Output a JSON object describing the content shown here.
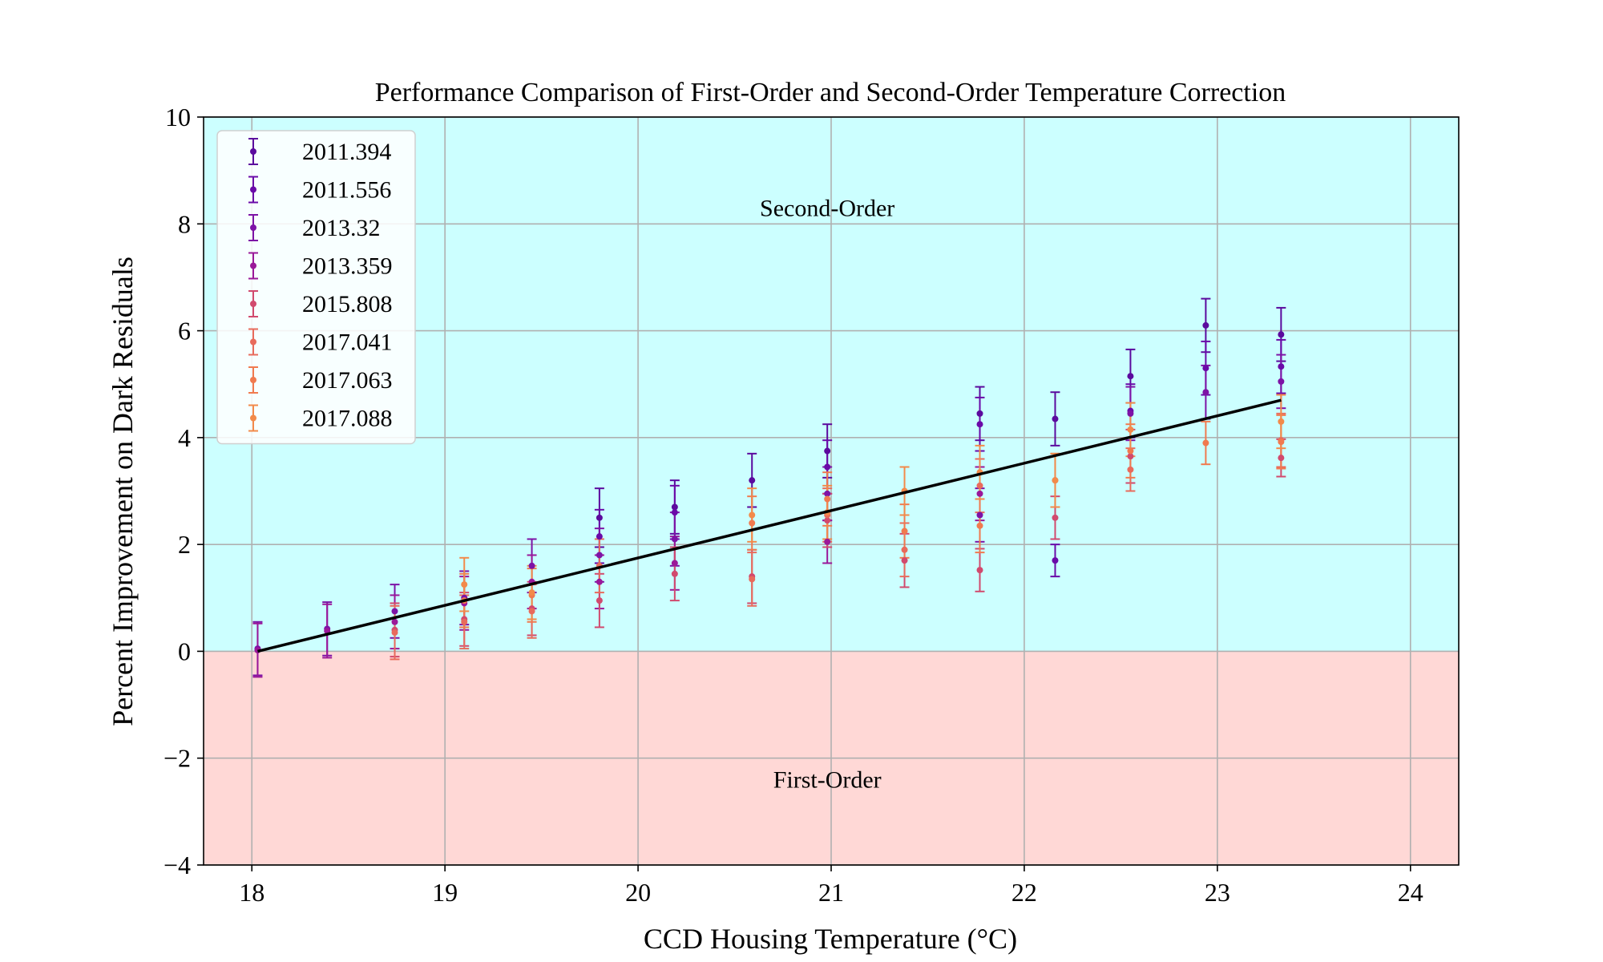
{
  "chart_data": {
    "type": "scatter",
    "title": "Performance Comparison of First-Order and Second-Order Temperature Correction",
    "xlabel": "CCD Housing Temperature (°C)",
    "ylabel": "Percent Improvement on Dark Residuals",
    "xlim": [
      17.75,
      24.25
    ],
    "ylim": [
      -4,
      10
    ],
    "xticks": [
      18,
      19,
      20,
      21,
      22,
      23,
      24
    ],
    "yticks": [
      -4,
      -2,
      0,
      2,
      4,
      6,
      8,
      10
    ],
    "ytick_labels": [
      "−4",
      "−2",
      "0",
      "2",
      "4",
      "6",
      "8",
      "10"
    ],
    "grid": true,
    "legend_position": "top-left",
    "regions": [
      {
        "label": "Second-Order",
        "y_range": [
          0,
          10
        ],
        "color": "#ccffff",
        "label_x": 20.98,
        "label_y": 8.3
      },
      {
        "label": "First-Order",
        "y_range": [
          -4,
          0
        ],
        "color": "#ffd8d6",
        "label_x": 20.98,
        "label_y": -2.4
      }
    ],
    "fit_line": {
      "x": [
        18.03,
        23.33
      ],
      "y": [
        0.0,
        4.7
      ],
      "color": "#000000"
    },
    "series": [
      {
        "name": "2011.394",
        "color": "#5b0a9e",
        "points": [
          [
            19.8,
            2.5,
            0.55
          ],
          [
            20.19,
            2.7,
            0.5
          ],
          [
            20.59,
            3.2,
            0.5
          ],
          [
            20.98,
            3.75,
            0.5
          ],
          [
            21.77,
            4.45,
            0.5
          ],
          [
            22.16,
            4.35,
            0.5
          ],
          [
            22.55,
            5.15,
            0.5
          ],
          [
            22.94,
            6.1,
            0.5
          ],
          [
            23.33,
            5.93,
            0.5
          ]
        ]
      },
      {
        "name": "2011.556",
        "color": "#6a0aa8",
        "points": [
          [
            19.8,
            2.15,
            0.5
          ],
          [
            20.19,
            2.6,
            0.5
          ],
          [
            20.98,
            3.45,
            0.5
          ],
          [
            21.77,
            4.25,
            0.5
          ],
          [
            22.16,
            1.7,
            0.3
          ],
          [
            22.55,
            4.5,
            0.5
          ],
          [
            22.94,
            5.3,
            0.5
          ],
          [
            23.33,
            5.33,
            0.5
          ]
        ]
      },
      {
        "name": "2013.32",
        "color": "#7d13a6",
        "points": [
          [
            18.03,
            0.05,
            0.5
          ],
          [
            18.39,
            0.42,
            0.5
          ],
          [
            18.74,
            0.75,
            0.5
          ],
          [
            19.1,
            1.0,
            0.5
          ],
          [
            19.45,
            1.6,
            0.5
          ],
          [
            19.8,
            1.8,
            0.5
          ],
          [
            20.19,
            2.1,
            0.5
          ],
          [
            20.98,
            2.95,
            0.5
          ],
          [
            21.77,
            2.55,
            0.5
          ],
          [
            22.55,
            4.45,
            0.5
          ],
          [
            22.94,
            4.85,
            0.5
          ],
          [
            23.33,
            5.05,
            0.5
          ]
        ]
      },
      {
        "name": "2013.359",
        "color": "#9a1899",
        "points": [
          [
            18.03,
            0.02,
            0.5
          ],
          [
            18.39,
            0.38,
            0.5
          ],
          [
            18.74,
            0.55,
            0.5
          ],
          [
            19.1,
            0.9,
            0.5
          ],
          [
            19.45,
            1.3,
            0.5
          ],
          [
            19.8,
            1.3,
            0.5
          ],
          [
            20.19,
            1.65,
            0.5
          ],
          [
            20.98,
            2.05,
            0.4
          ],
          [
            21.77,
            2.95,
            0.5
          ]
        ]
      },
      {
        "name": "2015.808",
        "color": "#d14a6e",
        "points": [
          [
            18.74,
            0.4,
            0.5
          ],
          [
            19.1,
            0.6,
            0.5
          ],
          [
            19.45,
            0.8,
            0.5
          ],
          [
            19.8,
            0.95,
            0.5
          ],
          [
            20.19,
            1.45,
            0.5
          ],
          [
            20.59,
            1.4,
            0.5
          ],
          [
            20.98,
            2.45,
            0.5
          ],
          [
            21.38,
            1.7,
            0.5
          ],
          [
            21.77,
            1.52,
            0.4
          ],
          [
            22.16,
            2.5,
            0.4
          ],
          [
            22.55,
            3.65,
            0.5
          ],
          [
            23.33,
            3.62,
            0.35
          ]
        ]
      },
      {
        "name": "2017.041",
        "color": "#e86b5c",
        "points": [
          [
            18.74,
            0.35,
            0.5
          ],
          [
            19.1,
            0.55,
            0.5
          ],
          [
            19.45,
            0.75,
            0.5
          ],
          [
            19.8,
            1.6,
            0.5
          ],
          [
            20.59,
            1.35,
            0.5
          ],
          [
            20.98,
            2.55,
            0.5
          ],
          [
            21.38,
            1.9,
            0.5
          ],
          [
            21.77,
            3.1,
            0.5
          ],
          [
            22.16,
            3.2,
            0.5
          ],
          [
            22.55,
            3.4,
            0.4
          ],
          [
            23.33,
            3.95,
            0.5
          ]
        ]
      },
      {
        "name": "2017.063",
        "color": "#f07a4f",
        "points": [
          [
            19.1,
            0.95,
            0.5
          ],
          [
            19.45,
            1.05,
            0.5
          ],
          [
            20.59,
            2.4,
            0.5
          ],
          [
            20.98,
            2.85,
            0.5
          ],
          [
            21.38,
            2.25,
            0.5
          ],
          [
            21.77,
            2.35,
            0.5
          ],
          [
            22.55,
            3.75,
            0.5
          ],
          [
            22.94,
            3.9,
            0.4
          ],
          [
            23.33,
            3.92,
            0.5
          ]
        ]
      },
      {
        "name": "2017.088",
        "color": "#f28a4a",
        "points": [
          [
            19.1,
            1.25,
            0.5
          ],
          [
            19.45,
            1.1,
            0.5
          ],
          [
            20.59,
            2.55,
            0.5
          ],
          [
            20.98,
            2.6,
            0.5
          ],
          [
            21.38,
            3.0,
            0.45
          ],
          [
            21.77,
            3.35,
            0.5
          ],
          [
            22.16,
            3.2,
            0.5
          ],
          [
            22.55,
            4.15,
            0.5
          ],
          [
            23.33,
            4.3,
            0.5
          ]
        ]
      }
    ]
  }
}
